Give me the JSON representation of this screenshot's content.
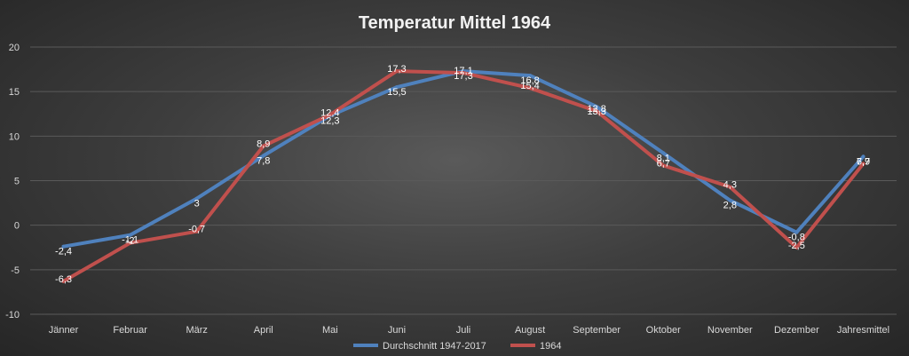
{
  "chart_data": {
    "type": "line",
    "title": "Temperatur Mittel 1964",
    "categories": [
      "Jänner",
      "Februar",
      "März",
      "April",
      "Mai",
      "Juni",
      "Juli",
      "August",
      "September",
      "Oktober",
      "November",
      "Dezember",
      "Jahresmittel"
    ],
    "ylim": [
      -10,
      20
    ],
    "yticks": [
      -10,
      -5,
      0,
      5,
      10,
      15,
      20
    ],
    "grid": true,
    "legend_position": "bottom",
    "series": [
      {
        "name": "Durchschnitt 1947-2017",
        "color": "#4f81bd",
        "values": [
          -2.4,
          -1.1,
          3,
          7.8,
          12.3,
          15.5,
          17.3,
          16.8,
          13.3,
          8.1,
          2.8,
          -0.8,
          7.7
        ],
        "labels": [
          "-2,4",
          "-1,1",
          "3",
          "7,8",
          "12,3",
          "15,5",
          "17,3",
          "16,8",
          "13,3",
          "8,1",
          "2,8",
          "-0,8",
          "7,7"
        ]
      },
      {
        "name": "1964",
        "color": "#c0504d",
        "values": [
          -6.3,
          -2,
          -0.7,
          8.9,
          12.4,
          17.3,
          17.1,
          15.4,
          12.8,
          6.7,
          4.3,
          -2.5,
          6.9
        ],
        "labels": [
          "-6,3",
          "-2",
          "-0,7",
          "8,9",
          "12,4",
          "17,3",
          "17,1",
          "15,4",
          "12,8",
          "6,7",
          "4,3",
          "-2,5",
          "6,9"
        ]
      }
    ]
  }
}
